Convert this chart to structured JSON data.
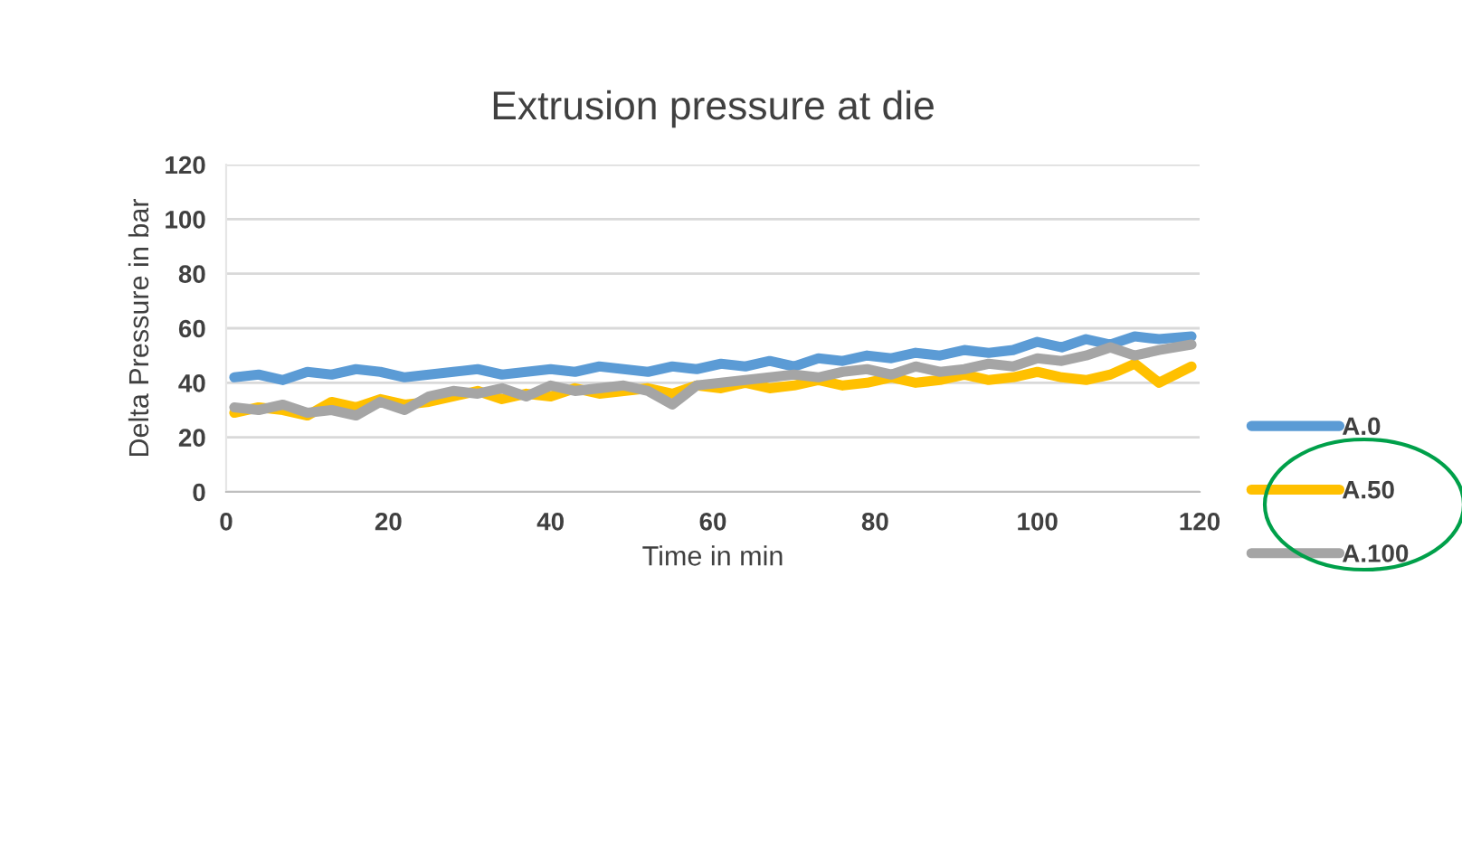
{
  "chart_data": {
    "type": "line",
    "title": "Extrusion pressure at die",
    "xlabel": "Time in min",
    "ylabel": "Delta Pressure in bar",
    "x": [
      1,
      4,
      7,
      10,
      13,
      16,
      19,
      22,
      25,
      28,
      31,
      34,
      37,
      40,
      43,
      46,
      49,
      52,
      55,
      58,
      61,
      64,
      67,
      70,
      73,
      76,
      79,
      82,
      85,
      88,
      91,
      94,
      97,
      100,
      103,
      106,
      109,
      112,
      115,
      119
    ],
    "series": [
      {
        "name": "A.0",
        "color": "#5b9bd5",
        "values": [
          42,
          43,
          41,
          44,
          43,
          45,
          44,
          42,
          43,
          44,
          45,
          43,
          44,
          45,
          44,
          46,
          45,
          44,
          46,
          45,
          47,
          46,
          48,
          46,
          49,
          48,
          50,
          49,
          51,
          50,
          52,
          51,
          52,
          55,
          53,
          56,
          54,
          57,
          56,
          57
        ]
      },
      {
        "name": "A.50",
        "color": "#ffc000",
        "values": [
          29,
          31,
          30,
          28,
          33,
          31,
          34,
          32,
          33,
          35,
          37,
          34,
          36,
          35,
          38,
          36,
          37,
          38,
          36,
          39,
          38,
          40,
          38,
          39,
          41,
          39,
          40,
          42,
          40,
          41,
          43,
          41,
          42,
          44,
          42,
          41,
          43,
          47,
          40,
          46
        ]
      },
      {
        "name": "A.100",
        "color": "#a5a5a5",
        "values": [
          31,
          30,
          32,
          29,
          30,
          28,
          33,
          30,
          35,
          37,
          36,
          38,
          35,
          39,
          37,
          38,
          39,
          37,
          32,
          39,
          40,
          41,
          42,
          43,
          42,
          44,
          45,
          43,
          46,
          44,
          45,
          47,
          46,
          49,
          48,
          50,
          53,
          50,
          52,
          54
        ]
      }
    ],
    "xlim": [
      0,
      120
    ],
    "xticks": [
      0,
      20,
      40,
      60,
      80,
      100,
      120
    ],
    "ylim": [
      0,
      120
    ],
    "yticks": [
      0,
      20,
      40,
      60,
      80,
      100,
      120
    ],
    "grid": "y",
    "legend": "right",
    "marker": "none",
    "line_style": "solid"
  }
}
